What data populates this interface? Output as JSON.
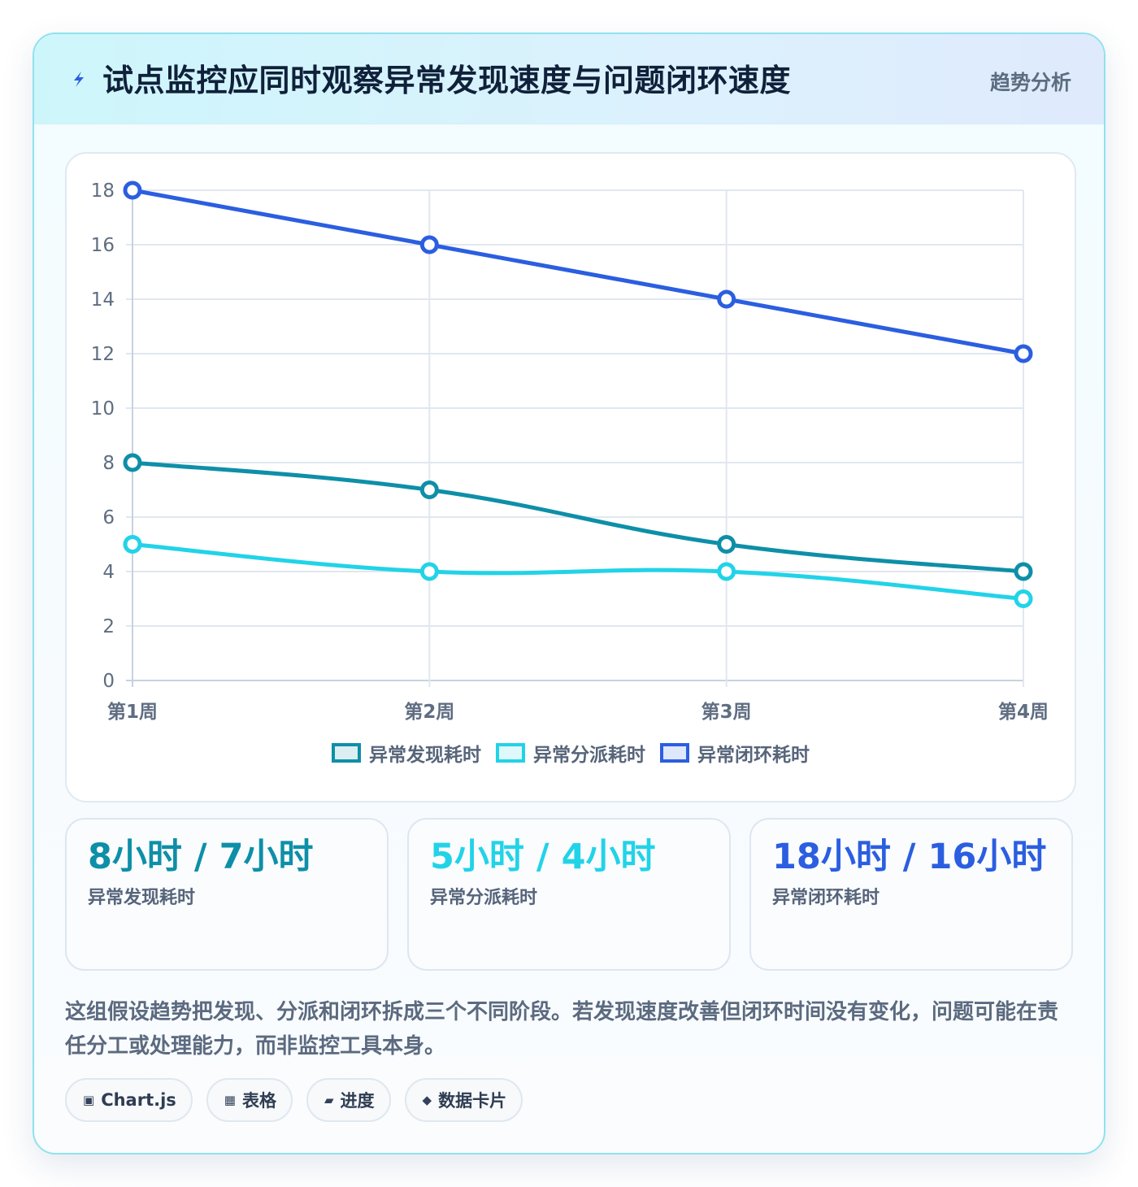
{
  "header": {
    "title": "试点监控应同时观察异常发现速度与问题闭环速度",
    "tag": "趋势分析",
    "icon": "lightning-icon"
  },
  "chart_data": {
    "type": "line",
    "categories": [
      "第1周",
      "第2周",
      "第3周",
      "第4周"
    ],
    "series": [
      {
        "name": "异常发现耗时",
        "values": [
          8,
          7,
          5,
          4
        ],
        "color": "#0e8fa8"
      },
      {
        "name": "异常分派耗时",
        "values": [
          5,
          4,
          4,
          3
        ],
        "color": "#22d3e8"
      },
      {
        "name": "异常闭环耗时",
        "values": [
          18,
          16,
          14,
          12
        ],
        "color": "#2b5ee0"
      }
    ],
    "ylim": [
      0,
      18
    ],
    "yticks": [
      0,
      2,
      4,
      6,
      8,
      10,
      12,
      14,
      16,
      18
    ],
    "grid": true,
    "legend": "bottom",
    "title": "",
    "xlabel": "",
    "ylabel": ""
  },
  "stats": [
    {
      "value": "8小时 / 7小时",
      "label": "异常发现耗时",
      "color": "#0e8fa8"
    },
    {
      "value": "5小时 / 4小时",
      "label": "异常分派耗时",
      "color": "#22d3e8"
    },
    {
      "value": "18小时 / 16小时",
      "label": "异常闭环耗时",
      "color": "#2b5ee0"
    }
  ],
  "description": "这组假设趋势把发现、分派和闭环拆成三个不同阶段。若发现速度改善但闭环时间没有变化，问题可能在责任分工或处理能力，而非监控工具本身。",
  "chips": [
    {
      "icon": "▣",
      "label": "Chart.js"
    },
    {
      "icon": "▦",
      "label": "表格"
    },
    {
      "icon": "▰",
      "label": "进度"
    },
    {
      "icon": "◆",
      "label": "数据卡片"
    }
  ]
}
